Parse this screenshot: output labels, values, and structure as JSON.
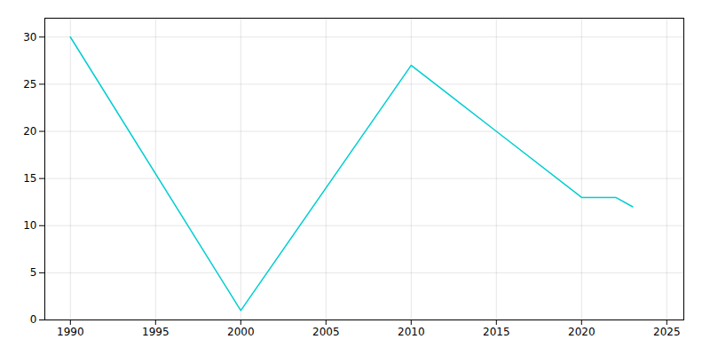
{
  "chart_data": {
    "type": "line",
    "x": [
      1990,
      2000,
      2010,
      2015,
      2020,
      2022,
      2023
    ],
    "values": [
      30,
      1,
      27,
      20,
      13,
      13,
      12
    ],
    "color": "#00CED1",
    "xlim": [
      1988.5,
      2026
    ],
    "xticks": [
      1990,
      1995,
      2000,
      2005,
      2010,
      2015,
      2020,
      2025
    ],
    "ylim": [
      0,
      32
    ],
    "yticks": [
      0,
      5,
      10,
      15,
      20,
      25,
      30
    ],
    "grid": true
  }
}
